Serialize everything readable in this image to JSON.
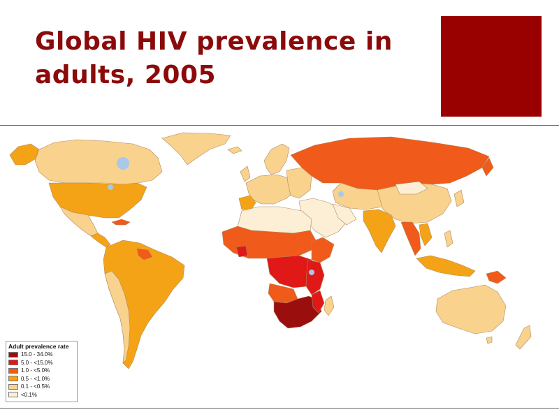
{
  "slide": {
    "title": "Global HIV prevalence in adults, 2005",
    "accent_color": "#990000"
  },
  "legend": {
    "title": "Adult prevalence rate",
    "items": [
      {
        "label": "15.0 - 34.0%",
        "color": "#9B0E0E"
      },
      {
        "label": "5.0 - <15.0%",
        "color": "#E01818"
      },
      {
        "label": "1.0 - <5.0%",
        "color": "#F05A1A"
      },
      {
        "label": "0.5 - <1.0%",
        "color": "#F5A316"
      },
      {
        "label": "0.1 - <0.5%",
        "color": "#F9D28E"
      },
      {
        "label": "<0.1%",
        "color": "#FCEFD6"
      }
    ]
  }
}
